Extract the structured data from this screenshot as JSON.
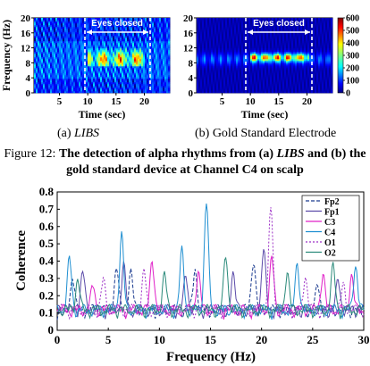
{
  "figure_caption": {
    "prefix": "Figure 12: ",
    "text_part1": "The detection of alpha rhythms from (a) ",
    "libs_word": "LIBS",
    "text_part2": " and (b) the gold standard device at Channel C4 on scalp"
  },
  "chart_data": [
    {
      "id": "a",
      "type": "heatmap",
      "subcaption": "(a) LIBS",
      "xlabel": "Time (sec)",
      "ylabel": "Frequency (Hz)",
      "x_ticks": [
        5,
        10,
        15,
        20
      ],
      "y_ticks": [
        0,
        4,
        8,
        12,
        16,
        20
      ],
      "xlim": [
        0.5,
        24.5
      ],
      "ylim": [
        0,
        20
      ],
      "annotation": "Eyes closed",
      "annotation_range": [
        10,
        20
      ],
      "colormap": "jet",
      "alpha_band_hz": [
        8,
        12
      ]
    },
    {
      "id": "b",
      "type": "heatmap",
      "subcaption": "(b) Gold Standard Electrode",
      "xlabel": "Time (sec)",
      "ylabel": "",
      "x_ticks": [
        5,
        10,
        15,
        20
      ],
      "y_ticks": [
        0,
        4,
        8,
        12,
        16,
        20
      ],
      "xlim": [
        0.5,
        24.5
      ],
      "ylim": [
        0,
        20
      ],
      "annotation": "Eyes closed",
      "annotation_range": [
        10,
        20
      ],
      "colormap": "jet",
      "colorbar_ticks": [
        0,
        100,
        200,
        300,
        400,
        500,
        600
      ],
      "alpha_band_hz": [
        8,
        12
      ]
    },
    {
      "id": "c",
      "type": "line",
      "xlabel": "Frequency (Hz)",
      "ylabel": "Coherence",
      "xlim": [
        0,
        30
      ],
      "ylim": [
        0,
        0.8
      ],
      "x_ticks": [
        0,
        5,
        10,
        15,
        20,
        25,
        30
      ],
      "y_ticks": [
        0,
        0.1,
        0.2,
        0.3,
        0.4,
        0.5,
        0.6,
        0.7,
        0.8
      ],
      "legend_position": "top-right",
      "series": [
        {
          "name": "Fp2",
          "color": "#1a3a8f",
          "dash": "4,2",
          "peaks": [
            [
              1.5,
              0.28
            ],
            [
              5.8,
              0.33
            ],
            [
              7.2,
              0.3
            ],
            [
              13.5,
              0.32
            ],
            [
              19.2,
              0.38
            ],
            [
              25.5,
              0.22
            ]
          ]
        },
        {
          "name": "Fp1",
          "color": "#5a4aa8",
          "dash": "",
          "peaks": [
            [
              2.5,
              0.3
            ],
            [
              6.5,
              0.34
            ],
            [
              12.6,
              0.28
            ],
            [
              17.2,
              0.3
            ],
            [
              20.2,
              0.43
            ],
            [
              27.5,
              0.25
            ]
          ]
        },
        {
          "name": "C3",
          "color": "#e020c8",
          "dash": "",
          "peaks": [
            [
              3.5,
              0.22
            ],
            [
              9.3,
              0.38
            ],
            [
              13.8,
              0.3
            ],
            [
              21.0,
              0.38
            ],
            [
              26.0,
              0.3
            ],
            [
              28.8,
              0.28
            ]
          ]
        },
        {
          "name": "C4",
          "color": "#1f8fd1",
          "dash": "",
          "peaks": [
            [
              1.2,
              0.38
            ],
            [
              6.3,
              0.52
            ],
            [
              12.2,
              0.42
            ],
            [
              14.6,
              0.71
            ],
            [
              23.5,
              0.35
            ],
            [
              29.2,
              0.35
            ]
          ]
        },
        {
          "name": "O1",
          "color": "#9c2fc6",
          "dash": "2,2",
          "peaks": [
            [
              4.5,
              0.25
            ],
            [
              8.5,
              0.3
            ],
            [
              20.9,
              0.68
            ],
            [
              24.3,
              0.28
            ],
            [
              28.0,
              0.22
            ]
          ]
        },
        {
          "name": "O2",
          "color": "#2a8a7a",
          "dash": "",
          "peaks": [
            [
              2.0,
              0.26
            ],
            [
              10.5,
              0.28
            ],
            [
              16.5,
              0.4
            ],
            [
              22.5,
              0.3
            ],
            [
              27.0,
              0.33
            ]
          ]
        }
      ]
    }
  ]
}
